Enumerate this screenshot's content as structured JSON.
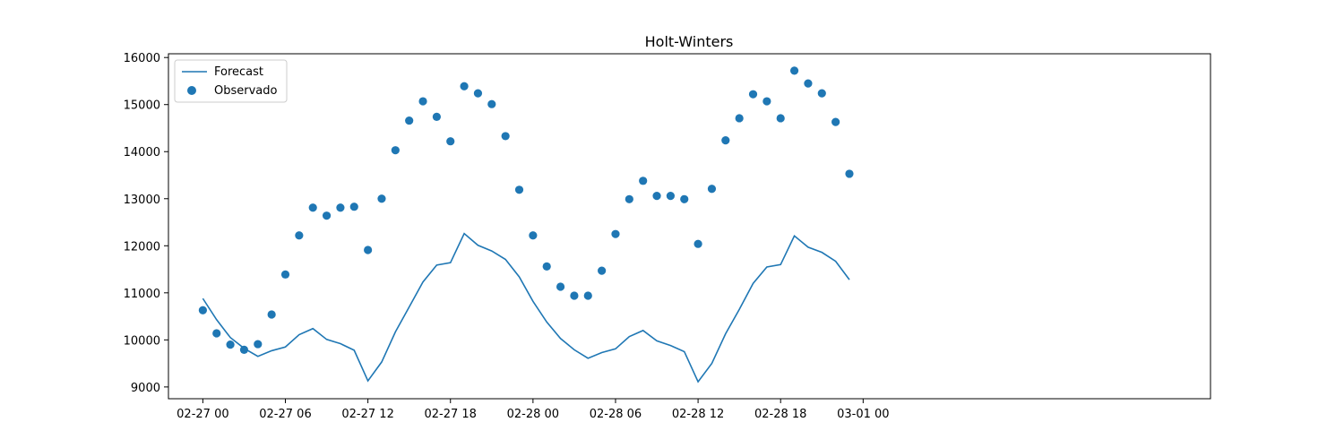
{
  "chart_data": {
    "type": "line",
    "title": "Holt-Winters",
    "xlabel": "",
    "ylabel": "",
    "x_tick_labels": [
      "02-27 00",
      "02-27 06",
      "02-27 12",
      "02-27 18",
      "02-28 00",
      "02-28 06",
      "02-28 12",
      "02-28 18",
      "03-01 00"
    ],
    "y_tick_labels": [
      "9000",
      "10000",
      "11000",
      "12000",
      "13000",
      "14000",
      "15000",
      "16000"
    ],
    "xlim": [
      "02-26 21:30",
      "03-01 01:15"
    ],
    "ylim": [
      8750,
      16080
    ],
    "grid": false,
    "legend_position": "top-left",
    "x_hours": [
      0,
      1,
      2,
      3,
      4,
      5,
      6,
      7,
      8,
      9,
      10,
      11,
      12,
      13,
      14,
      15,
      16,
      17,
      18,
      19,
      20,
      21,
      22,
      23,
      24,
      25,
      26,
      27,
      28,
      29,
      30,
      31,
      32,
      33,
      34,
      35,
      36,
      37,
      38,
      39,
      40,
      41,
      42,
      43,
      44,
      45,
      46,
      47
    ],
    "series": [
      {
        "name": "Forecast",
        "kind": "line",
        "color": "#1f77b4",
        "values": [
          10880,
          10430,
          10050,
          9820,
          9650,
          9770,
          9850,
          10110,
          10240,
          10010,
          9920,
          9780,
          9130,
          9530,
          10170,
          10700,
          11230,
          11590,
          11640,
          12260,
          12010,
          11890,
          11710,
          11340,
          10820,
          10380,
          10030,
          9790,
          9610,
          9730,
          9810,
          10070,
          10200,
          9980,
          9880,
          9750,
          9110,
          9500,
          10130,
          10650,
          11200,
          11550,
          11600,
          12210,
          11970,
          11860,
          11670,
          11280
        ]
      },
      {
        "name": "Observado",
        "kind": "scatter",
        "color": "#1f77b4",
        "values": [
          10630,
          10140,
          9900,
          9790,
          9910,
          10540,
          11390,
          12220,
          12810,
          12640,
          12810,
          12830,
          11910,
          13000,
          14030,
          14660,
          15070,
          14740,
          14220,
          15390,
          15240,
          15010,
          14330,
          13190,
          12220,
          11560,
          11130,
          10940,
          10940,
          11470,
          12250,
          12990,
          13380,
          13060,
          13060,
          12990,
          12040,
          13210,
          14240,
          14710,
          15220,
          15070,
          14710,
          15720,
          15450,
          15240,
          14630,
          13530
        ]
      }
    ]
  }
}
